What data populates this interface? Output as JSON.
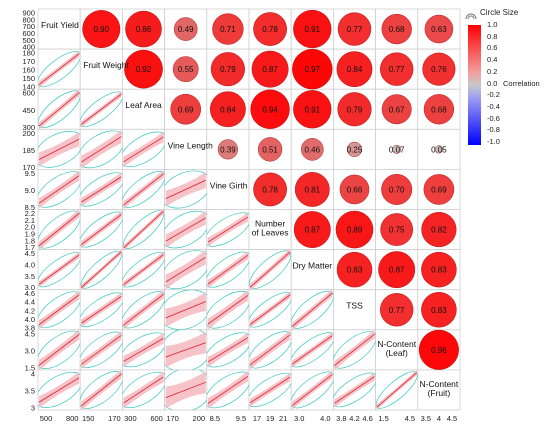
{
  "chart_data": {
    "type": "scatterplot-matrix",
    "variables": [
      [
        "Fruit Yield"
      ],
      [
        "Fruit Weight"
      ],
      [
        "Leaf Area"
      ],
      [
        "Vine Length"
      ],
      [
        "Vine Girth"
      ],
      [
        "Number",
        "of Leaves"
      ],
      [
        "Dry Matter"
      ],
      [
        "TSS"
      ],
      [
        "N-Content",
        "(Leaf)"
      ],
      [
        "N-Content",
        "(Fruit)"
      ]
    ],
    "correlations": [
      [
        0,
        1,
        0.9
      ],
      [
        0,
        2,
        0.86
      ],
      [
        0,
        3,
        0.49
      ],
      [
        0,
        4,
        0.71
      ],
      [
        0,
        5,
        0.78
      ],
      [
        0,
        6,
        0.91
      ],
      [
        0,
        7,
        0.77
      ],
      [
        0,
        8,
        0.68
      ],
      [
        0,
        9,
        0.63
      ],
      [
        1,
        2,
        0.92
      ],
      [
        1,
        3,
        0.55
      ],
      [
        1,
        4,
        0.79
      ],
      [
        1,
        5,
        0.87
      ],
      [
        1,
        6,
        0.97
      ],
      [
        1,
        7,
        0.84
      ],
      [
        1,
        8,
        0.77
      ],
      [
        1,
        9,
        0.76
      ],
      [
        2,
        3,
        0.69
      ],
      [
        2,
        4,
        0.84
      ],
      [
        2,
        5,
        0.94
      ],
      [
        2,
        6,
        0.91
      ],
      [
        2,
        7,
        0.79
      ],
      [
        2,
        8,
        0.67
      ],
      [
        2,
        9,
        0.68
      ],
      [
        3,
        4,
        0.39
      ],
      [
        3,
        5,
        0.51
      ],
      [
        3,
        6,
        0.46
      ],
      [
        3,
        7,
        0.25
      ],
      [
        3,
        8,
        0.07
      ],
      [
        3,
        9,
        0.05
      ],
      [
        4,
        5,
        0.78
      ],
      [
        4,
        6,
        0.81
      ],
      [
        4,
        7,
        0.66
      ],
      [
        4,
        8,
        0.7
      ],
      [
        4,
        9,
        0.69
      ],
      [
        5,
        6,
        0.87
      ],
      [
        5,
        7,
        0.89
      ],
      [
        5,
        8,
        0.75
      ],
      [
        5,
        9,
        0.82
      ],
      [
        6,
        7,
        0.83
      ],
      [
        6,
        8,
        0.87
      ],
      [
        6,
        9,
        0.83
      ],
      [
        7,
        8,
        0.77
      ],
      [
        7,
        9,
        0.83
      ],
      [
        8,
        9,
        0.96
      ]
    ],
    "y_ticks": [
      [
        "900",
        "800",
        "700",
        "600",
        "500",
        "400"
      ],
      [
        "180",
        "170",
        "160",
        "150",
        "140"
      ],
      [
        "600",
        "450",
        "300"
      ],
      [
        "200",
        "185",
        "170"
      ],
      [
        "9.5",
        "9.0",
        "8.5"
      ],
      [
        "2.2",
        "2.1",
        "2.0",
        "1.9",
        "1.8",
        "1.7"
      ],
      [
        "4.5",
        "4.0",
        "3.5",
        "3.0"
      ],
      [
        "4.6",
        "4.4",
        "4.2",
        "4.0",
        "3.8"
      ],
      [
        "4.5",
        "3.0",
        "1.5"
      ],
      [
        "4",
        "3.5",
        "3"
      ]
    ],
    "x_ticks": [
      [
        "500",
        "800"
      ],
      [
        "150",
        "170"
      ],
      [
        "300",
        "600"
      ],
      [
        "170",
        "200"
      ],
      [
        "8.5",
        "9.5"
      ],
      [
        "17",
        "19",
        "21"
      ],
      [
        "3.0",
        "4.0"
      ],
      [
        "3.8",
        "4.2",
        "4.6"
      ],
      [
        "1.5",
        "4.5"
      ],
      [
        "3.5",
        "4",
        "4.5"
      ]
    ],
    "legend": {
      "title": "Circle Size",
      "color_label": "Correlation",
      "stops": [
        "1.0",
        "0.8",
        "0.6",
        "0.4",
        "0.2",
        "0.0",
        "-0.2",
        "-0.4",
        "-0.6",
        "-0.8",
        "-1.0"
      ],
      "colors": {
        "positive": "#ff0000",
        "neutral": "#c8c8c8",
        "negative": "#0000ff"
      }
    },
    "colors": {
      "fit_line": "#e0303c",
      "fit_band": "#f5b8bf",
      "density_ellipse": "#38c8c0"
    }
  }
}
